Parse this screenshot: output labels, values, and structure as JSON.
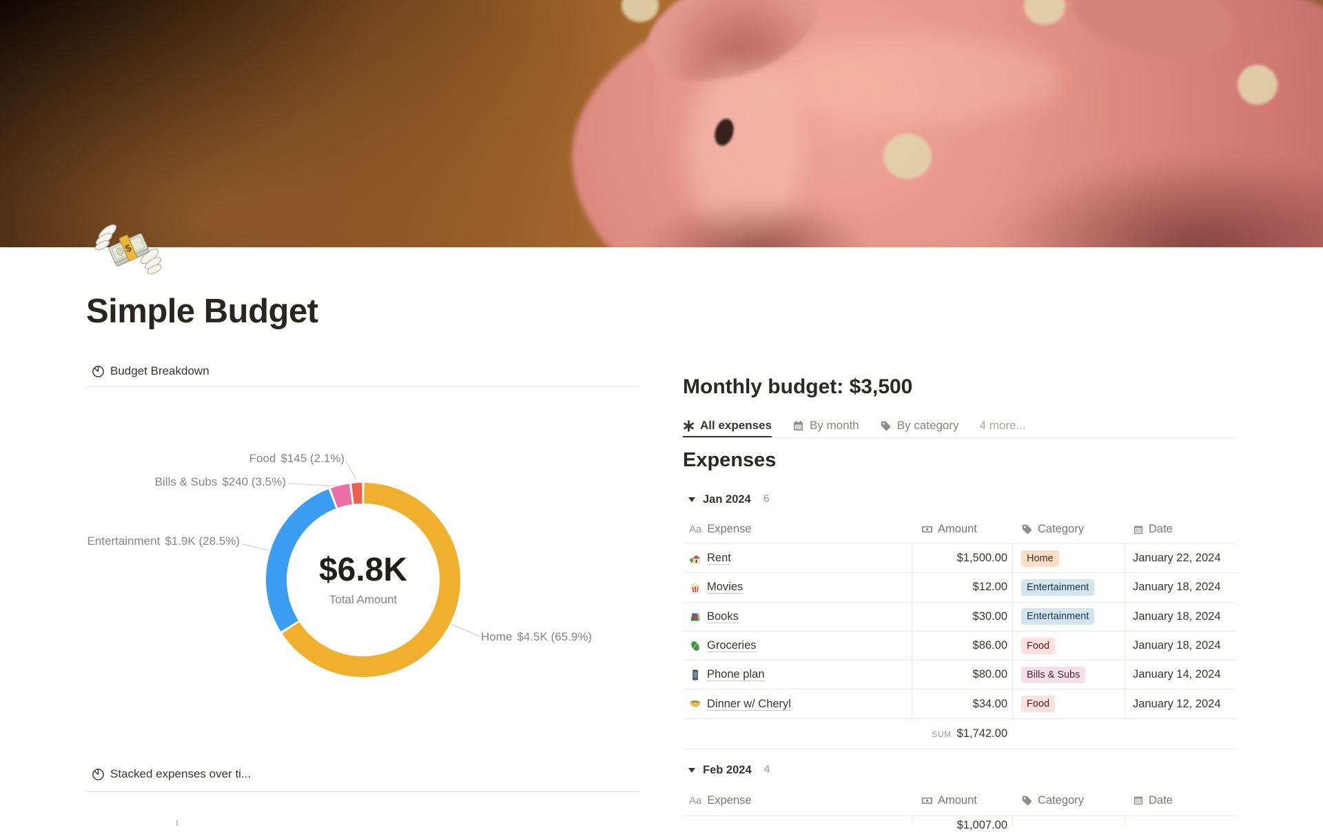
{
  "page": {
    "title": "Simple Budget"
  },
  "left": {
    "budget_breakdown_title": "Budget Breakdown",
    "stacked_title": "Stacked expenses over ti..."
  },
  "chart_data": {
    "type": "pie",
    "title": "Budget Breakdown",
    "total_value": "$6.8K",
    "total_label": "Total Amount",
    "legend_position": "callout-labels",
    "segments": [
      {
        "label": "Home",
        "value": 4500,
        "display": "$4.5K (65.9%)",
        "pct": 65.9,
        "color": "#F0AF2D"
      },
      {
        "label": "Entertainment",
        "value": 1900,
        "display": "$1.9K (28.5%)",
        "pct": 28.5,
        "color": "#3B9DF2"
      },
      {
        "label": "Bills & Subs",
        "value": 240,
        "display": "$240 (3.5%)",
        "pct": 3.5,
        "color": "#ED6EA7"
      },
      {
        "label": "Food",
        "value": 145,
        "display": "$145 (2.1%)",
        "pct": 2.1,
        "color": "#E9614C"
      }
    ]
  },
  "right": {
    "heading": "Monthly budget: $3,500",
    "tabs": {
      "all": "All expenses",
      "by_month": "By month",
      "by_category": "By category",
      "more": "4 more..."
    },
    "expenses_title": "Expenses",
    "headers": {
      "expense_icon_label": "Aa",
      "expense": "Expense",
      "amount": "Amount",
      "category": "Category",
      "date": "Date"
    },
    "jan": {
      "name": "Jan 2024",
      "count": "6",
      "rows": [
        {
          "icon": "house",
          "name": "Rent",
          "amount": "$1,500.00",
          "category": "Home",
          "date": "January 22, 2024"
        },
        {
          "icon": "popcorn",
          "name": "Movies",
          "amount": "$12.00",
          "category": "Entertainment",
          "date": "January 18, 2024"
        },
        {
          "icon": "books",
          "name": "Books",
          "amount": "$30.00",
          "category": "Entertainment",
          "date": "January 18, 2024"
        },
        {
          "icon": "leafy-green",
          "name": "Groceries",
          "amount": "$86.00",
          "category": "Food",
          "date": "January 18, 2024"
        },
        {
          "icon": "mobile-phone",
          "name": "Phone plan",
          "amount": "$80.00",
          "category": "Bills & Subs",
          "date": "January 14, 2024"
        },
        {
          "icon": "taco",
          "name": "Dinner w/ Cheryl",
          "amount": "$34.00",
          "category": "Food",
          "date": "January 12, 2024"
        }
      ],
      "sum_label": "SUM",
      "sum_value": "$1,742.00"
    },
    "feb": {
      "name": "Feb 2024",
      "count": "4",
      "partial_amount": "$1,007.00"
    }
  }
}
